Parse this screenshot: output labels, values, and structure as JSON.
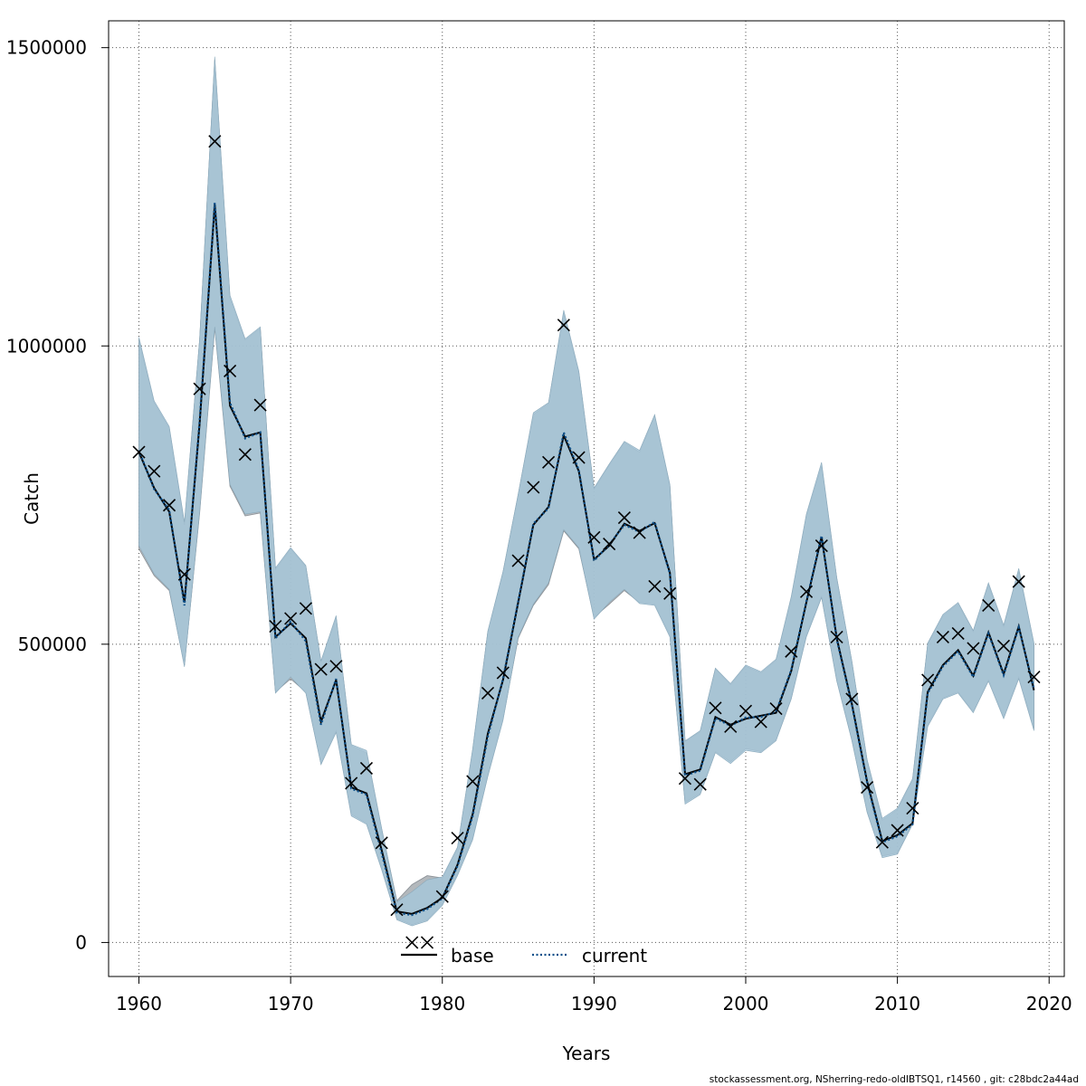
{
  "chart_data": {
    "type": "line",
    "title": "",
    "xlabel": "Years",
    "ylabel": "Catch",
    "xlim": [
      1958,
      2021
    ],
    "ylim": [
      -57000,
      1545000
    ],
    "x_ticks": [
      1960,
      1970,
      1980,
      1990,
      2000,
      2010,
      2020
    ],
    "y_ticks": [
      0,
      500000,
      1000000,
      1500000
    ],
    "grid": true,
    "legend": {
      "placement": "bottom-center",
      "items": [
        "base",
        "current"
      ]
    },
    "colors": {
      "band": "#a6c6d8",
      "band_edge": "#8aa9bb",
      "base": "#000000",
      "current": "#0b4f8a",
      "observed": "#000000",
      "grid": "#555555"
    },
    "series": [
      {
        "name": "base",
        "x": [
          1960,
          1961,
          1962,
          1963,
          1964,
          1965,
          1966,
          1967,
          1968,
          1969,
          1970,
          1971,
          1972,
          1973,
          1974,
          1975,
          1976,
          1977,
          1978,
          1979,
          1980,
          1981,
          1982,
          1983,
          1984,
          1985,
          1986,
          1987,
          1988,
          1989,
          1990,
          1991,
          1992,
          1993,
          1994,
          1995,
          1996,
          1997,
          1998,
          1999,
          2000,
          2001,
          2002,
          2003,
          2004,
          2005,
          2006,
          2007,
          2008,
          2009,
          2010,
          2011,
          2012,
          2013,
          2014,
          2015,
          2016,
          2017,
          2018,
          2019
        ],
        "values": [
          822000,
          762000,
          722000,
          570000,
          870000,
          1237000,
          900000,
          848000,
          855000,
          512000,
          535000,
          510000,
          370000,
          440000,
          260000,
          250000,
          155000,
          52000,
          48000,
          58000,
          75000,
          130000,
          215000,
          350000,
          440000,
          570000,
          700000,
          730000,
          850000,
          790000,
          642000,
          665000,
          702000,
          690000,
          703000,
          620000,
          282000,
          290000,
          378000,
          365000,
          375000,
          380000,
          385000,
          455000,
          570000,
          680000,
          510000,
          400000,
          270000,
          170000,
          180000,
          200000,
          420000,
          465000,
          490000,
          447000,
          520000,
          450000,
          530000,
          423000
        ],
        "lower": [
          660000,
          615000,
          590000,
          465000,
          720000,
          1030000,
          765000,
          715000,
          720000,
          420000,
          442000,
          420000,
          300000,
          355000,
          215000,
          200000,
          125000,
          40000,
          30000,
          38000,
          65000,
          115000,
          175000,
          280000,
          375000,
          510000,
          565000,
          600000,
          690000,
          660000,
          545000,
          567000,
          590000,
          570000,
          567000,
          515000,
          235000,
          250000,
          320000,
          303000,
          325000,
          320000,
          340000,
          410000,
          515000,
          580000,
          440000,
          340000,
          220000,
          145000,
          150000,
          200000,
          365000,
          410000,
          420000,
          387000,
          440000,
          378000,
          445000,
          358000
        ],
        "upper": [
          1010000,
          905000,
          862000,
          700000,
          1010000,
          1480000,
          1080000,
          1010000,
          1030000,
          625000,
          660000,
          630000,
          470000,
          545000,
          330000,
          318000,
          190000,
          70000,
          97000,
          112000,
          108000,
          158000,
          322000,
          520000,
          620000,
          750000,
          885000,
          903000,
          1055000,
          955000,
          760000,
          800000,
          838000,
          822000,
          883000,
          765000,
          337000,
          353000,
          459000,
          432000,
          463000,
          452000,
          473000,
          577000,
          715000,
          800000,
          610000,
          470000,
          305000,
          205000,
          223000,
          272000,
          500000,
          548000,
          568000,
          521000,
          600000,
          529000,
          623000,
          500000
        ]
      },
      {
        "name": "current",
        "x": [
          1960,
          1961,
          1962,
          1963,
          1964,
          1965,
          1966,
          1967,
          1968,
          1969,
          1970,
          1971,
          1972,
          1973,
          1974,
          1975,
          1976,
          1977,
          1978,
          1979,
          1980,
          1981,
          1982,
          1983,
          1984,
          1985,
          1986,
          1987,
          1988,
          1989,
          1990,
          1991,
          1992,
          1993,
          1994,
          1995,
          1996,
          1997,
          1998,
          1999,
          2000,
          2001,
          2002,
          2003,
          2004,
          2005,
          2006,
          2007,
          2008,
          2009,
          2010,
          2011,
          2012,
          2013,
          2014,
          2015,
          2016,
          2017,
          2018,
          2019
        ],
        "values": [
          825000,
          760000,
          725000,
          565000,
          875000,
          1240000,
          905000,
          845000,
          855000,
          510000,
          538000,
          505000,
          365000,
          442000,
          258000,
          248000,
          150000,
          50000,
          46000,
          56000,
          74000,
          128000,
          212000,
          345000,
          442000,
          572000,
          702000,
          728000,
          855000,
          792000,
          640000,
          667000,
          700000,
          688000,
          705000,
          618000,
          280000,
          288000,
          376000,
          363000,
          377000,
          378000,
          387000,
          457000,
          572000,
          682000,
          508000,
          398000,
          268000,
          168000,
          178000,
          198000,
          418000,
          463000,
          488000,
          445000,
          518000,
          448000,
          528000,
          425000
        ],
        "lower": [
          665000,
          618000,
          592000,
          462000,
          722000,
          1032000,
          768000,
          718000,
          722000,
          418000,
          445000,
          418000,
          298000,
          352000,
          212000,
          198000,
          122000,
          38000,
          28000,
          36000,
          62000,
          112000,
          172000,
          278000,
          372000,
          512000,
          567000,
          603000,
          692000,
          662000,
          542000,
          570000,
          592000,
          568000,
          565000,
          512000,
          232000,
          248000,
          318000,
          300000,
          322000,
          318000,
          338000,
          408000,
          512000,
          578000,
          438000,
          338000,
          218000,
          142000,
          148000,
          198000,
          362000,
          408000,
          418000,
          385000,
          438000,
          375000,
          442000,
          355000
        ],
        "upper": [
          1015000,
          908000,
          865000,
          705000,
          1012000,
          1485000,
          1085000,
          1012000,
          1032000,
          628000,
          662000,
          632000,
          472000,
          548000,
          332000,
          322000,
          192000,
          68000,
          85000,
          105000,
          110000,
          160000,
          325000,
          522000,
          622000,
          752000,
          888000,
          905000,
          1060000,
          958000,
          762000,
          802000,
          840000,
          825000,
          885000,
          768000,
          338000,
          355000,
          460000,
          434000,
          465000,
          454000,
          475000,
          580000,
          718000,
          805000,
          612000,
          472000,
          307000,
          208000,
          225000,
          275000,
          502000,
          550000,
          570000,
          523000,
          603000,
          532000,
          627000,
          502000
        ]
      },
      {
        "name": "observed",
        "x": [
          1960,
          1961,
          1962,
          1963,
          1964,
          1965,
          1966,
          1967,
          1968,
          1969,
          1970,
          1971,
          1972,
          1973,
          1974,
          1975,
          1976,
          1977,
          1978,
          1979,
          1980,
          1981,
          1982,
          1983,
          1984,
          1985,
          1986,
          1987,
          1988,
          1989,
          1990,
          1991,
          1992,
          1993,
          1994,
          1995,
          1996,
          1997,
          1998,
          1999,
          2000,
          2001,
          2002,
          2003,
          2004,
          2005,
          2006,
          2007,
          2008,
          2009,
          2010,
          2011,
          2012,
          2013,
          2014,
          2015,
          2016,
          2017,
          2018,
          2019
        ],
        "values": [
          822000,
          790000,
          733000,
          617000,
          928000,
          1343000,
          958000,
          818000,
          901000,
          530000,
          543000,
          560000,
          458000,
          463000,
          267000,
          292000,
          167000,
          55000,
          0,
          0,
          77000,
          175000,
          270000,
          418000,
          452000,
          640000,
          763000,
          805000,
          1035000,
          813000,
          679000,
          668000,
          712000,
          687000,
          597000,
          585000,
          275000,
          265000,
          393000,
          362000,
          388000,
          370000,
          392000,
          488000,
          588000,
          665000,
          512000,
          408000,
          260000,
          168000,
          188000,
          225000,
          440000,
          512000,
          518000,
          493000,
          565000,
          497000,
          605000,
          445000
        ]
      }
    ],
    "footer": "stockassessment.org, NSherring-redo-oldIBTSQ1, r14560 , git: c28bdc2a44ad"
  }
}
